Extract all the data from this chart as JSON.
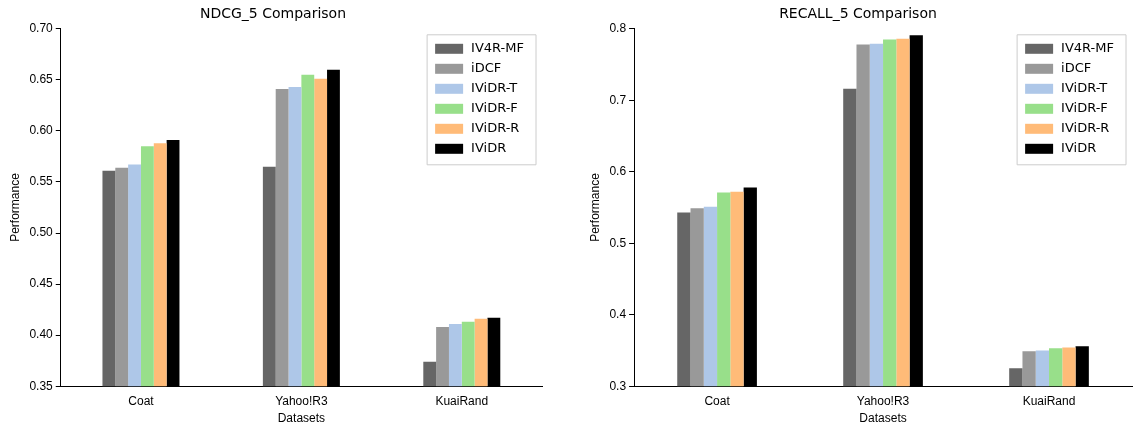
{
  "chart_data": [
    {
      "type": "bar",
      "title": "NDCG_5 Comparison",
      "xlabel": "Datasets",
      "ylabel": "Performance",
      "categories": [
        "Coat",
        "Yahoo!R3",
        "KuaiRand"
      ],
      "ylim": [
        0.35,
        0.7
      ],
      "yticks": [
        {
          "value": 0.35,
          "label": "0.35"
        },
        {
          "value": 0.4,
          "label": "0.40"
        },
        {
          "value": 0.45,
          "label": "0.45"
        },
        {
          "value": 0.5,
          "label": "0.50"
        },
        {
          "value": 0.55,
          "label": "0.55"
        },
        {
          "value": 0.6,
          "label": "0.60"
        },
        {
          "value": 0.65,
          "label": "0.65"
        },
        {
          "value": 0.7,
          "label": "0.70"
        }
      ],
      "grid": false,
      "legend": "top right",
      "series": [
        {
          "name": "IV4R-MF",
          "color": "#666666",
          "values": [
            0.561,
            0.565,
            0.374
          ]
        },
        {
          "name": "iDCF",
          "color": "#999999",
          "values": [
            0.564,
            0.641,
            0.408
          ]
        },
        {
          "name": "IViDR-T",
          "color": "#aec7e8",
          "values": [
            0.567,
            0.643,
            0.411
          ]
        },
        {
          "name": "IViDR-F",
          "color": "#98df8a",
          "values": [
            0.585,
            0.655,
            0.413
          ]
        },
        {
          "name": "IViDR-R",
          "color": "#ffbb78",
          "values": [
            0.588,
            0.651,
            0.416
          ]
        },
        {
          "name": "IViDR",
          "color": "#000000",
          "values": [
            0.591,
            0.66,
            0.417
          ]
        }
      ]
    },
    {
      "type": "bar",
      "title": "RECALL_5 Comparison",
      "xlabel": "Datasets",
      "ylabel": "Performance",
      "categories": [
        "Coat",
        "Yahoo!R3",
        "KuaiRand"
      ],
      "ylim": [
        0.3,
        0.8
      ],
      "yticks": [
        0.3,
        0.4,
        0.5,
        0.6,
        0.7,
        0.8
      ],
      "grid": false,
      "legend": "top right",
      "series": [
        {
          "name": "IV4R-MF",
          "color": "#666666",
          "values": [
            0.543,
            0.716,
            0.325
          ]
        },
        {
          "name": "iDCF",
          "color": "#999999",
          "values": [
            0.549,
            0.778,
            0.349
          ]
        },
        {
          "name": "IViDR-T",
          "color": "#aec7e8",
          "values": [
            0.551,
            0.779,
            0.35
          ]
        },
        {
          "name": "IViDR-F",
          "color": "#98df8a",
          "values": [
            0.571,
            0.785,
            0.353
          ]
        },
        {
          "name": "IViDR-R",
          "color": "#ffbb78",
          "values": [
            0.572,
            0.786,
            0.354
          ]
        },
        {
          "name": "IViDR",
          "color": "#000000",
          "values": [
            0.578,
            0.791,
            0.356
          ]
        }
      ]
    }
  ]
}
